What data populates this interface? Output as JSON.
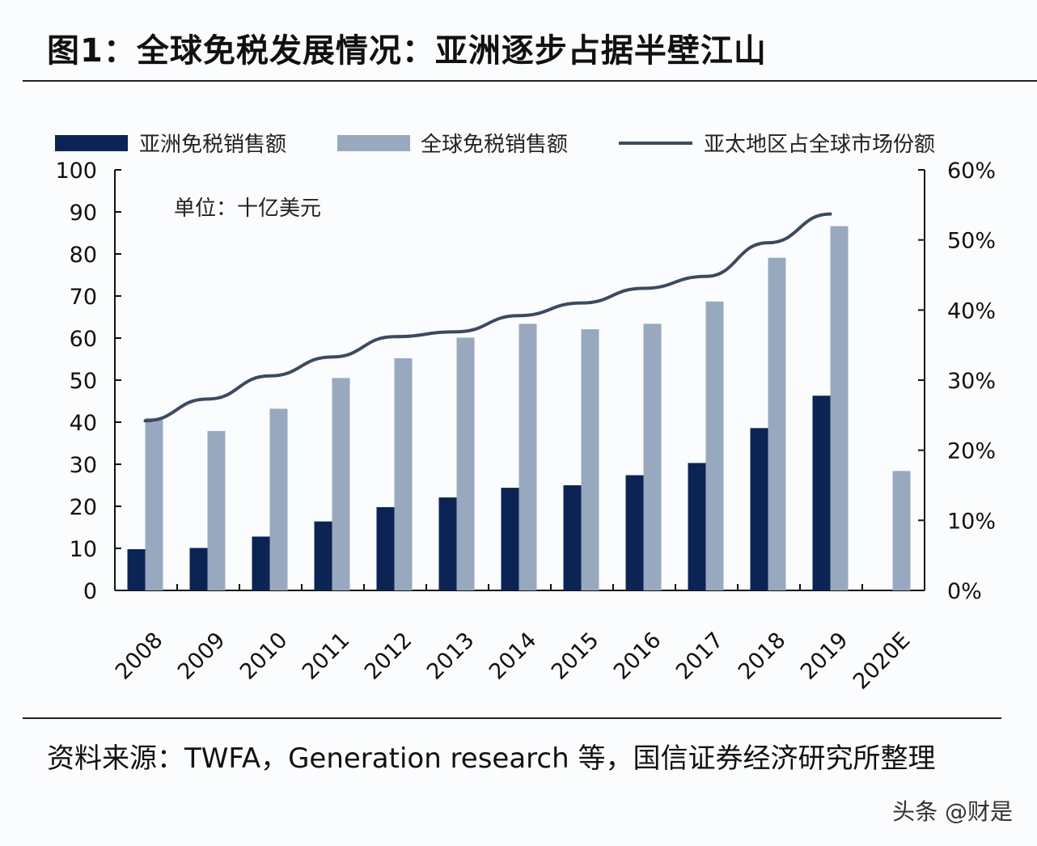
{
  "title": "图1：全球免税发展情况：亚洲逐步占据半壁江山",
  "source": "资料来源：TWFA，Generation research 等，国信证券经济研究所整理",
  "watermark": "头条 @财是",
  "chart_data": {
    "type": "bar+line",
    "unit_note": "单位：十亿美元",
    "categories": [
      "2008",
      "2009",
      "2010",
      "2011",
      "2012",
      "2013",
      "2014",
      "2015",
      "2016",
      "2017",
      "2018",
      "2019",
      "2020E"
    ],
    "left_axis": {
      "range": [
        0,
        100
      ],
      "ticks": [
        "0",
        "10",
        "20",
        "30",
        "40",
        "50",
        "60",
        "70",
        "80",
        "90",
        "100"
      ]
    },
    "right_axis": {
      "range": [
        0,
        60
      ],
      "ticks": [
        "0%",
        "10%",
        "20%",
        "30%",
        "40%",
        "50%",
        "60%"
      ]
    },
    "legend_position": "top",
    "grid": false,
    "series": [
      {
        "name": "亚洲免税销售额",
        "type": "bar",
        "axis": "left",
        "color": "#0c2454",
        "values": [
          9.8,
          10.1,
          12.8,
          16.4,
          19.8,
          22.1,
          24.4,
          25.0,
          27.4,
          30.3,
          38.6,
          46.3,
          null
        ]
      },
      {
        "name": "全球免税销售额",
        "type": "bar",
        "axis": "left",
        "color": "#98a9bf",
        "values": [
          41.0,
          37.9,
          43.2,
          50.5,
          55.2,
          60.1,
          63.4,
          62.1,
          63.4,
          68.7,
          79.1,
          86.6,
          28.4
        ]
      },
      {
        "name": "亚太地区占全球市场份额",
        "type": "line",
        "axis": "right",
        "color": "#3c4a5e",
        "unit": "%",
        "values": [
          24.2,
          27.3,
          30.6,
          33.3,
          36.2,
          36.9,
          39.2,
          41.0,
          43.1,
          44.8,
          49.6,
          53.7,
          null
        ]
      }
    ]
  }
}
